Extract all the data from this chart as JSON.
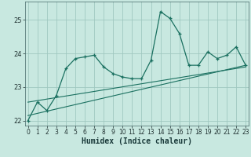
{
  "xlabel": "Humidex (Indice chaleur)",
  "bg_color": "#c8e8e0",
  "grid_color": "#a0c8c0",
  "line_color": "#1a7060",
  "x_values": [
    0,
    1,
    2,
    3,
    4,
    5,
    6,
    7,
    8,
    9,
    10,
    11,
    12,
    13,
    14,
    15,
    16,
    17,
    18,
    19,
    20,
    21,
    22,
    23
  ],
  "y_values": [
    22.0,
    22.55,
    22.3,
    22.75,
    23.55,
    23.85,
    23.9,
    23.95,
    23.6,
    23.4,
    23.3,
    23.25,
    23.25,
    23.8,
    25.25,
    25.05,
    24.6,
    23.65,
    23.65,
    24.05,
    23.85,
    23.95,
    24.2,
    23.65
  ],
  "reg_line1_x": [
    0,
    23
  ],
  "reg_line1_y": [
    22.15,
    23.65
  ],
  "reg_line2_x": [
    0,
    23
  ],
  "reg_line2_y": [
    22.55,
    23.6
  ],
  "ylim": [
    21.85,
    25.55
  ],
  "xlim": [
    -0.3,
    23.3
  ],
  "yticks": [
    22,
    23,
    24,
    25
  ],
  "xticks": [
    0,
    1,
    2,
    3,
    4,
    5,
    6,
    7,
    8,
    9,
    10,
    11,
    12,
    13,
    14,
    15,
    16,
    17,
    18,
    19,
    20,
    21,
    22,
    23
  ]
}
